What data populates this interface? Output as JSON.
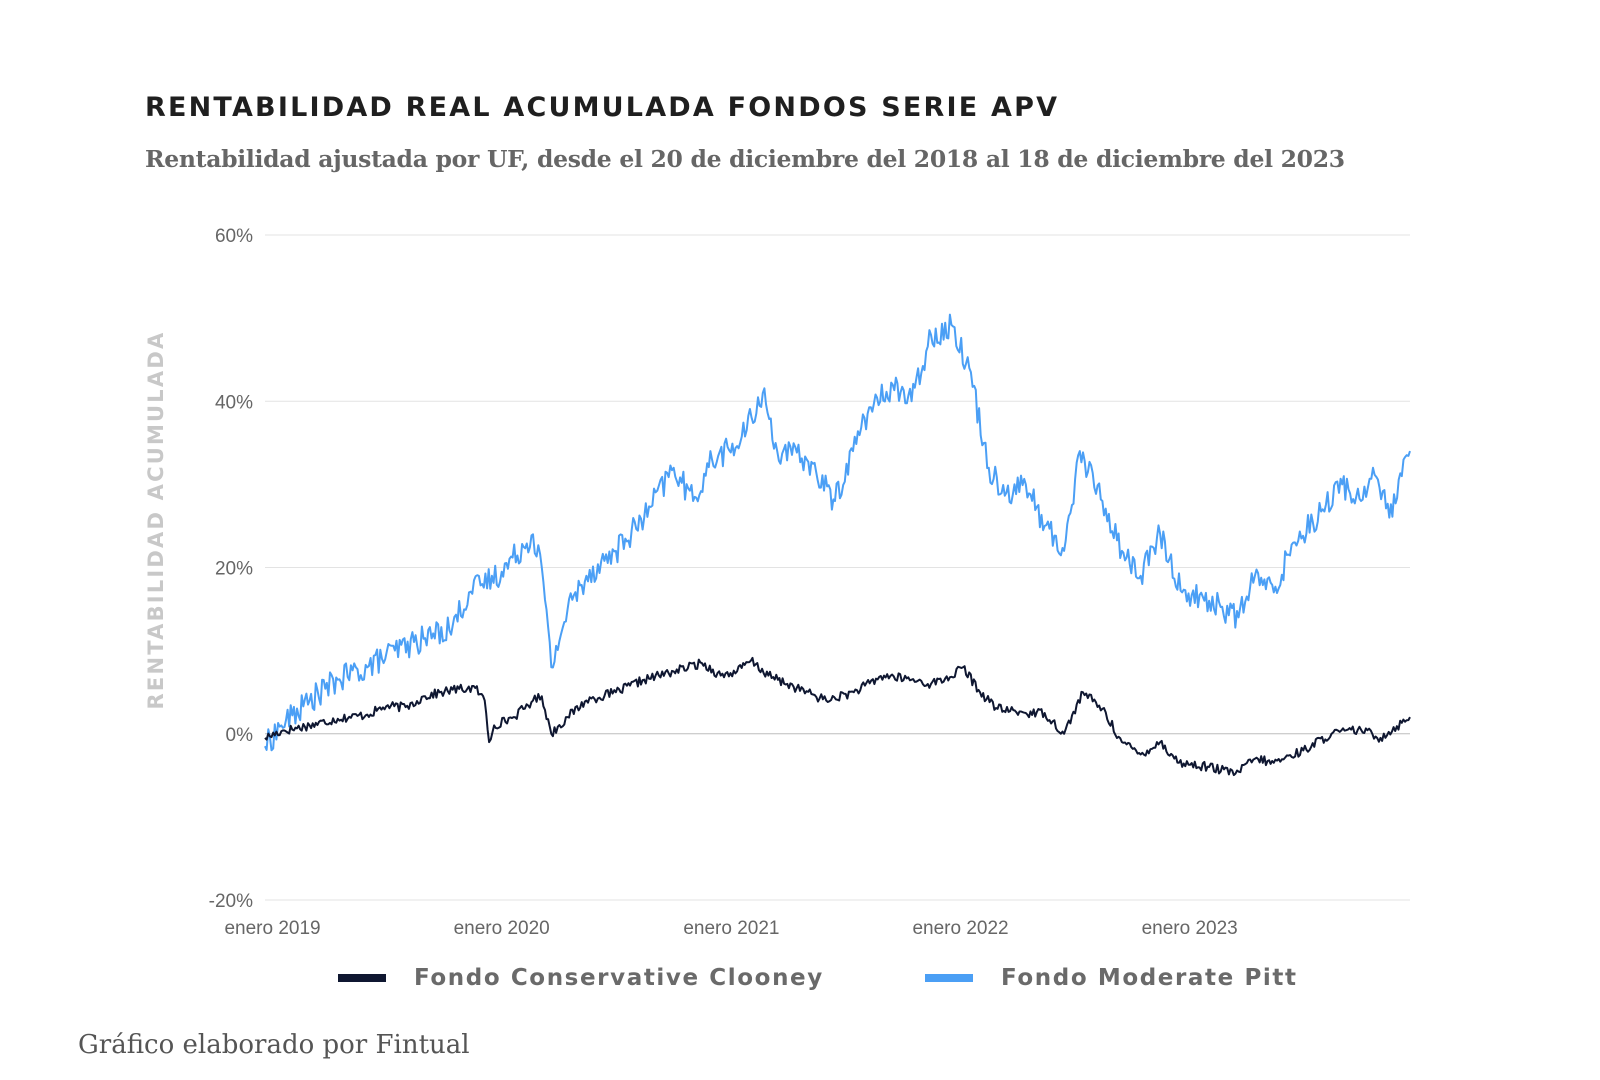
{
  "title": "RENTABILIDAD REAL ACUMULADA FONDOS SERIE APV",
  "subtitle": "Rentabilidad ajustada por UF, desde el 20 de diciembre del 2018 al 18 de diciembre del 2023",
  "credit": "Gráfico elaborado por Fintual",
  "colors": {
    "conservative": "#0f1731",
    "moderate": "#4b9ff5",
    "grid": "#e3e3e3",
    "zero_line": "#bdbdbd"
  },
  "chart_data": {
    "type": "line",
    "title": "RENTABILIDAD REAL ACUMULADA FONDOS SERIE APV",
    "xlabel": "",
    "ylabel": "RENTABILIDAD ACUMULADA",
    "x_range": [
      "2018-12-20",
      "2023-12-18"
    ],
    "ylim": [
      -20,
      60
    ],
    "y_ticks": [
      -20,
      0,
      20,
      40,
      60
    ],
    "y_tick_labels": [
      "-20%",
      "0%",
      "20%",
      "40%",
      "60%"
    ],
    "x_ticks": [
      "2019-01-01",
      "2020-01-01",
      "2021-01-01",
      "2022-01-01",
      "2023-01-01"
    ],
    "x_tick_labels": [
      "enero 2019",
      "enero 2020",
      "enero 2021",
      "enero 2022",
      "enero 2023"
    ],
    "grid": true,
    "legend_position": "bottom",
    "series": [
      {
        "name": "Fondo Conservative Clooney",
        "color": "#0f1731",
        "points": [
          [
            "2018-12-20",
            -0.5
          ],
          [
            "2019-01-15",
            0.3
          ],
          [
            "2019-03-01",
            1.0
          ],
          [
            "2019-04-15",
            1.8
          ],
          [
            "2019-06-01",
            2.3
          ],
          [
            "2019-07-01",
            3.3
          ],
          [
            "2019-08-01",
            3.2
          ],
          [
            "2019-09-01",
            4.5
          ],
          [
            "2019-10-15",
            5.3
          ],
          [
            "2019-11-20",
            5.5
          ],
          [
            "2019-12-05",
            4.0
          ],
          [
            "2019-12-12",
            -1.0
          ],
          [
            "2019-12-20",
            1.0
          ],
          [
            "2020-01-20",
            2.0
          ],
          [
            "2020-02-20",
            4.0
          ],
          [
            "2020-03-05",
            4.5
          ],
          [
            "2020-03-20",
            0.0
          ],
          [
            "2020-04-15",
            2.0
          ],
          [
            "2020-05-15",
            4.0
          ],
          [
            "2020-07-01",
            5.0
          ],
          [
            "2020-08-15",
            6.5
          ],
          [
            "2020-10-01",
            7.5
          ],
          [
            "2020-11-15",
            8.5
          ],
          [
            "2020-12-15",
            7.0
          ],
          [
            "2021-01-10",
            7.5
          ],
          [
            "2021-02-01",
            8.8
          ],
          [
            "2021-03-01",
            7.0
          ],
          [
            "2021-04-15",
            5.5
          ],
          [
            "2021-06-01",
            4.0
          ],
          [
            "2021-07-15",
            5.0
          ],
          [
            "2021-09-01",
            7.0
          ],
          [
            "2021-10-15",
            6.5
          ],
          [
            "2021-11-15",
            6.0
          ],
          [
            "2021-12-15",
            6.8
          ],
          [
            "2022-01-05",
            8.0
          ],
          [
            "2022-02-01",
            5.0
          ],
          [
            "2022-03-01",
            3.0
          ],
          [
            "2022-04-15",
            2.5
          ],
          [
            "2022-05-15",
            2.5
          ],
          [
            "2022-06-15",
            0.0
          ],
          [
            "2022-07-15",
            5.0
          ],
          [
            "2022-08-15",
            3.0
          ],
          [
            "2022-09-15",
            -1.0
          ],
          [
            "2022-10-15",
            -2.5
          ],
          [
            "2022-11-15",
            -1.0
          ],
          [
            "2022-12-15",
            -3.5
          ],
          [
            "2023-02-01",
            -4.0
          ],
          [
            "2023-03-15",
            -4.8
          ],
          [
            "2023-04-15",
            -3.0
          ],
          [
            "2023-05-15",
            -3.5
          ],
          [
            "2023-07-01",
            -2.0
          ],
          [
            "2023-08-15",
            0.0
          ],
          [
            "2023-10-01",
            0.5
          ],
          [
            "2023-11-01",
            -0.5
          ],
          [
            "2023-12-18",
            2.0
          ]
        ]
      },
      {
        "name": "Fondo Moderate Pitt",
        "color": "#4b9ff5",
        "points": [
          [
            "2018-12-20",
            -1.5
          ],
          [
            "2019-01-15",
            1.0
          ],
          [
            "2019-03-01",
            4.0
          ],
          [
            "2019-04-15",
            6.5
          ],
          [
            "2019-06-01",
            8.0
          ],
          [
            "2019-07-15",
            10.0
          ],
          [
            "2019-09-01",
            11.5
          ],
          [
            "2019-10-15",
            13.0
          ],
          [
            "2019-11-10",
            17.0
          ],
          [
            "2019-12-01",
            18.0
          ],
          [
            "2020-01-01",
            19.5
          ],
          [
            "2020-02-20",
            24.0
          ],
          [
            "2020-03-05",
            20.0
          ],
          [
            "2020-03-20",
            8.0
          ],
          [
            "2020-04-15",
            15.0
          ],
          [
            "2020-05-15",
            19.0
          ],
          [
            "2020-07-01",
            22.0
          ],
          [
            "2020-08-15",
            26.0
          ],
          [
            "2020-10-01",
            32.0
          ],
          [
            "2020-11-01",
            28.0
          ],
          [
            "2020-12-01",
            33.0
          ],
          [
            "2021-01-15",
            35.0
          ],
          [
            "2021-02-20",
            41.0
          ],
          [
            "2021-03-15",
            34.0
          ],
          [
            "2021-05-01",
            33.0
          ],
          [
            "2021-06-15",
            28.0
          ],
          [
            "2021-08-01",
            38.0
          ],
          [
            "2021-09-15",
            42.0
          ],
          [
            "2021-10-15",
            40.0
          ],
          [
            "2021-11-15",
            48.0
          ],
          [
            "2021-12-20",
            49.0
          ],
          [
            "2022-01-15",
            44.0
          ],
          [
            "2022-02-15",
            32.0
          ],
          [
            "2022-03-15",
            29.0
          ],
          [
            "2022-04-15",
            30.0
          ],
          [
            "2022-05-15",
            25.0
          ],
          [
            "2022-06-15",
            22.0
          ],
          [
            "2022-07-10",
            34.0
          ],
          [
            "2022-08-15",
            28.0
          ],
          [
            "2022-09-15",
            22.0
          ],
          [
            "2022-10-15",
            19.0
          ],
          [
            "2022-11-15",
            24.0
          ],
          [
            "2022-12-20",
            17.0
          ],
          [
            "2023-02-01",
            16.0
          ],
          [
            "2023-03-20",
            14.0
          ],
          [
            "2023-04-15",
            19.0
          ],
          [
            "2023-05-15",
            17.0
          ],
          [
            "2023-06-15",
            23.0
          ],
          [
            "2023-08-01",
            27.0
          ],
          [
            "2023-09-01",
            30.0
          ],
          [
            "2023-10-01",
            28.0
          ],
          [
            "2023-10-20",
            32.0
          ],
          [
            "2023-11-15",
            26.0
          ],
          [
            "2023-12-05",
            31.0
          ],
          [
            "2023-12-18",
            34.0
          ]
        ]
      }
    ]
  }
}
